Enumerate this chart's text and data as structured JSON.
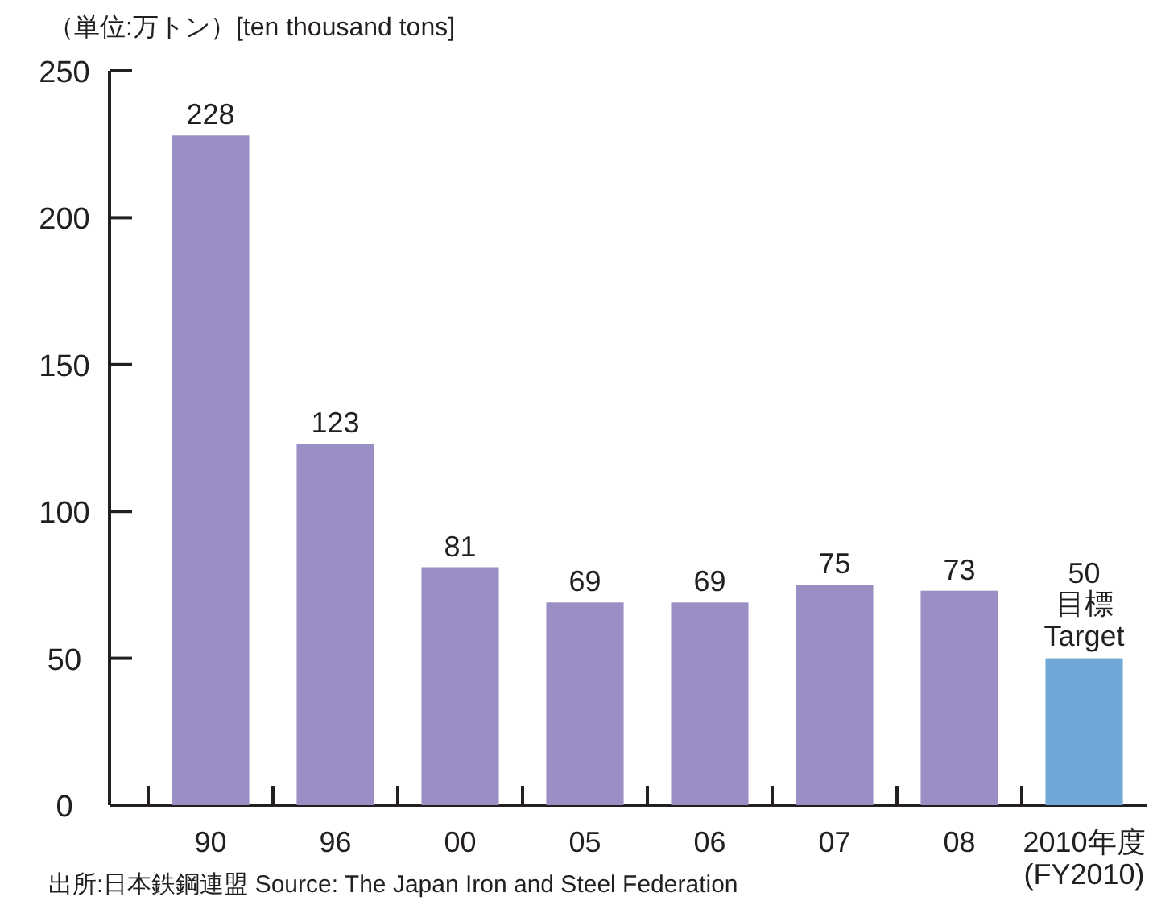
{
  "chart_data": {
    "type": "bar",
    "ylabel": "（単位:万トン）[ten thousand tons]",
    "categories": [
      "90",
      "96",
      "00",
      "05",
      "06",
      "07",
      "08",
      "2010年度\n(FY2010)"
    ],
    "values": [
      228,
      123,
      81,
      69,
      69,
      75,
      73,
      50
    ],
    "colors": [
      "#9b8ec4",
      "#9b8ec4",
      "#9b8ec4",
      "#9b8ec4",
      "#9b8ec4",
      "#9b8ec4",
      "#9b8ec4",
      "#6fa8d6"
    ],
    "value_labels": [
      "228",
      "123",
      "81",
      "69",
      "69",
      "75",
      "73",
      "50"
    ],
    "ylim": [
      0,
      250
    ],
    "yticks": [
      0,
      50,
      100,
      150,
      200,
      250
    ],
    "annotations": [
      {
        "text": "目標\nTarget",
        "x": "2010年度\n(FY2010)",
        "y": 50
      },
      "出所:日本鉄鋼連盟 Source: The Japan Iron and Steel Federation"
    ]
  }
}
